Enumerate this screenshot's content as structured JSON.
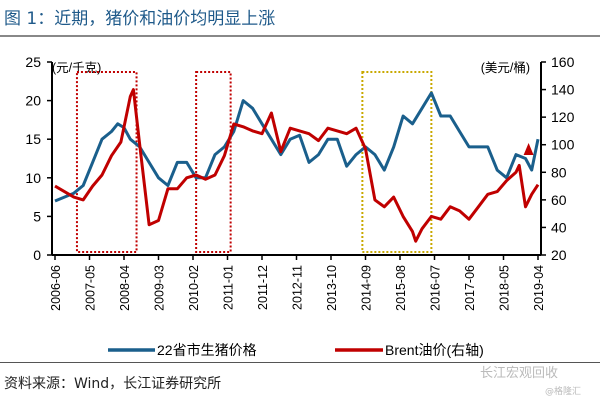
{
  "title": "图 1：近期，猪价和油价均明显上涨",
  "source": "资料来源：Wind，长江证券研究所",
  "watermark": "长江宏观回收",
  "watermark2": "@格隆汇",
  "colors": {
    "pig": "#1a5f8c",
    "oil": "#c00000",
    "box_red": "#c00000",
    "box_yellow": "#c8a800",
    "title": "#1f5a8a"
  },
  "chart_data": {
    "type": "line",
    "title": "图 1：近期，猪价和油价均明显上涨",
    "ylabel_left": "(元/千克)",
    "ylabel_right": "(美元/桶)",
    "ylim_left": [
      0,
      25
    ],
    "ylim_right": [
      20,
      160
    ],
    "yticks_left": [
      0,
      5,
      10,
      15,
      20,
      25
    ],
    "yticks_right": [
      20,
      40,
      60,
      80,
      100,
      120,
      140,
      160
    ],
    "x_start": "2006-06",
    "xticks": [
      "2006-06",
      "2007-05",
      "2008-04",
      "2009-03",
      "2010-02",
      "2011-01",
      "2011-12",
      "2012-11",
      "2013-10",
      "2014-09",
      "2015-08",
      "2016-07",
      "2017-06",
      "2018-05",
      "2019-04"
    ],
    "series": [
      {
        "name": "22省市生猪价格",
        "axis": "left",
        "points": [
          [
            "2006-06",
            7
          ],
          [
            "2006-12",
            8
          ],
          [
            "2007-03",
            9
          ],
          [
            "2007-06",
            12
          ],
          [
            "2007-09",
            15
          ],
          [
            "2007-12",
            16
          ],
          [
            "2008-02",
            17
          ],
          [
            "2008-04",
            16.5
          ],
          [
            "2008-06",
            15
          ],
          [
            "2008-09",
            14
          ],
          [
            "2008-12",
            12
          ],
          [
            "2009-03",
            10
          ],
          [
            "2009-06",
            9
          ],
          [
            "2009-09",
            12
          ],
          [
            "2009-12",
            12
          ],
          [
            "2010-03",
            10
          ],
          [
            "2010-06",
            10
          ],
          [
            "2010-09",
            13
          ],
          [
            "2010-12",
            14
          ],
          [
            "2011-03",
            16
          ],
          [
            "2011-06",
            20
          ],
          [
            "2011-09",
            19
          ],
          [
            "2011-12",
            17
          ],
          [
            "2012-03",
            15
          ],
          [
            "2012-06",
            13
          ],
          [
            "2012-09",
            15
          ],
          [
            "2012-12",
            15.5
          ],
          [
            "2013-03",
            12
          ],
          [
            "2013-06",
            13
          ],
          [
            "2013-09",
            15
          ],
          [
            "2013-12",
            15
          ],
          [
            "2014-03",
            11.5
          ],
          [
            "2014-06",
            13
          ],
          [
            "2014-09",
            14
          ],
          [
            "2014-12",
            13
          ],
          [
            "2015-03",
            11
          ],
          [
            "2015-06",
            14
          ],
          [
            "2015-09",
            18
          ],
          [
            "2015-12",
            17
          ],
          [
            "2016-03",
            19
          ],
          [
            "2016-06",
            21
          ],
          [
            "2016-09",
            18
          ],
          [
            "2016-12",
            18
          ],
          [
            "2017-03",
            16
          ],
          [
            "2017-06",
            14
          ],
          [
            "2017-09",
            14
          ],
          [
            "2017-12",
            14
          ],
          [
            "2018-03",
            11
          ],
          [
            "2018-06",
            10
          ],
          [
            "2018-09",
            13
          ],
          [
            "2018-12",
            12.5
          ],
          [
            "2019-02",
            11
          ],
          [
            "2019-04",
            15
          ]
        ]
      },
      {
        "name": "Brent油价(右轴)",
        "axis": "right",
        "points": [
          [
            "2006-06",
            70
          ],
          [
            "2006-12",
            62
          ],
          [
            "2007-03",
            60
          ],
          [
            "2007-06",
            70
          ],
          [
            "2007-09",
            78
          ],
          [
            "2007-12",
            92
          ],
          [
            "2008-03",
            102
          ],
          [
            "2008-06",
            135
          ],
          [
            "2008-07",
            140
          ],
          [
            "2008-09",
            100
          ],
          [
            "2008-12",
            42
          ],
          [
            "2009-03",
            45
          ],
          [
            "2009-06",
            68
          ],
          [
            "2009-09",
            68
          ],
          [
            "2009-12",
            76
          ],
          [
            "2010-03",
            78
          ],
          [
            "2010-06",
            75
          ],
          [
            "2010-09",
            78
          ],
          [
            "2010-12",
            92
          ],
          [
            "2011-03",
            115
          ],
          [
            "2011-06",
            113
          ],
          [
            "2011-09",
            110
          ],
          [
            "2011-12",
            108
          ],
          [
            "2012-03",
            123
          ],
          [
            "2012-06",
            95
          ],
          [
            "2012-09",
            112
          ],
          [
            "2012-12",
            110
          ],
          [
            "2013-03",
            108
          ],
          [
            "2013-06",
            103
          ],
          [
            "2013-09",
            112
          ],
          [
            "2013-12",
            110
          ],
          [
            "2014-03",
            108
          ],
          [
            "2014-06",
            112
          ],
          [
            "2014-09",
            97
          ],
          [
            "2014-12",
            60
          ],
          [
            "2015-03",
            55
          ],
          [
            "2015-06",
            62
          ],
          [
            "2015-09",
            48
          ],
          [
            "2015-12",
            37
          ],
          [
            "2016-01",
            30
          ],
          [
            "2016-03",
            39
          ],
          [
            "2016-06",
            48
          ],
          [
            "2016-09",
            46
          ],
          [
            "2016-12",
            55
          ],
          [
            "2017-03",
            52
          ],
          [
            "2017-06",
            46
          ],
          [
            "2017-09",
            55
          ],
          [
            "2017-12",
            64
          ],
          [
            "2018-03",
            66
          ],
          [
            "2018-06",
            74
          ],
          [
            "2018-09",
            80
          ],
          [
            "2018-10",
            85
          ],
          [
            "2018-12",
            55
          ],
          [
            "2019-02",
            64
          ],
          [
            "2019-04",
            71
          ]
        ]
      }
    ],
    "annotations": [
      {
        "type": "box",
        "style": "red-dotted",
        "from": "2007-01",
        "to": "2008-08"
      },
      {
        "type": "box",
        "style": "red-dotted",
        "from": "2010-03",
        "to": "2011-02"
      },
      {
        "type": "box",
        "style": "yellow-dotted",
        "from": "2014-08",
        "to": "2016-06"
      },
      {
        "type": "arrow",
        "color": "red",
        "at": "2019-01",
        "direction": "up"
      }
    ],
    "legend": {
      "position": "bottom",
      "entries": [
        "22省市生猪价格",
        "Brent油价(右轴)"
      ]
    }
  }
}
